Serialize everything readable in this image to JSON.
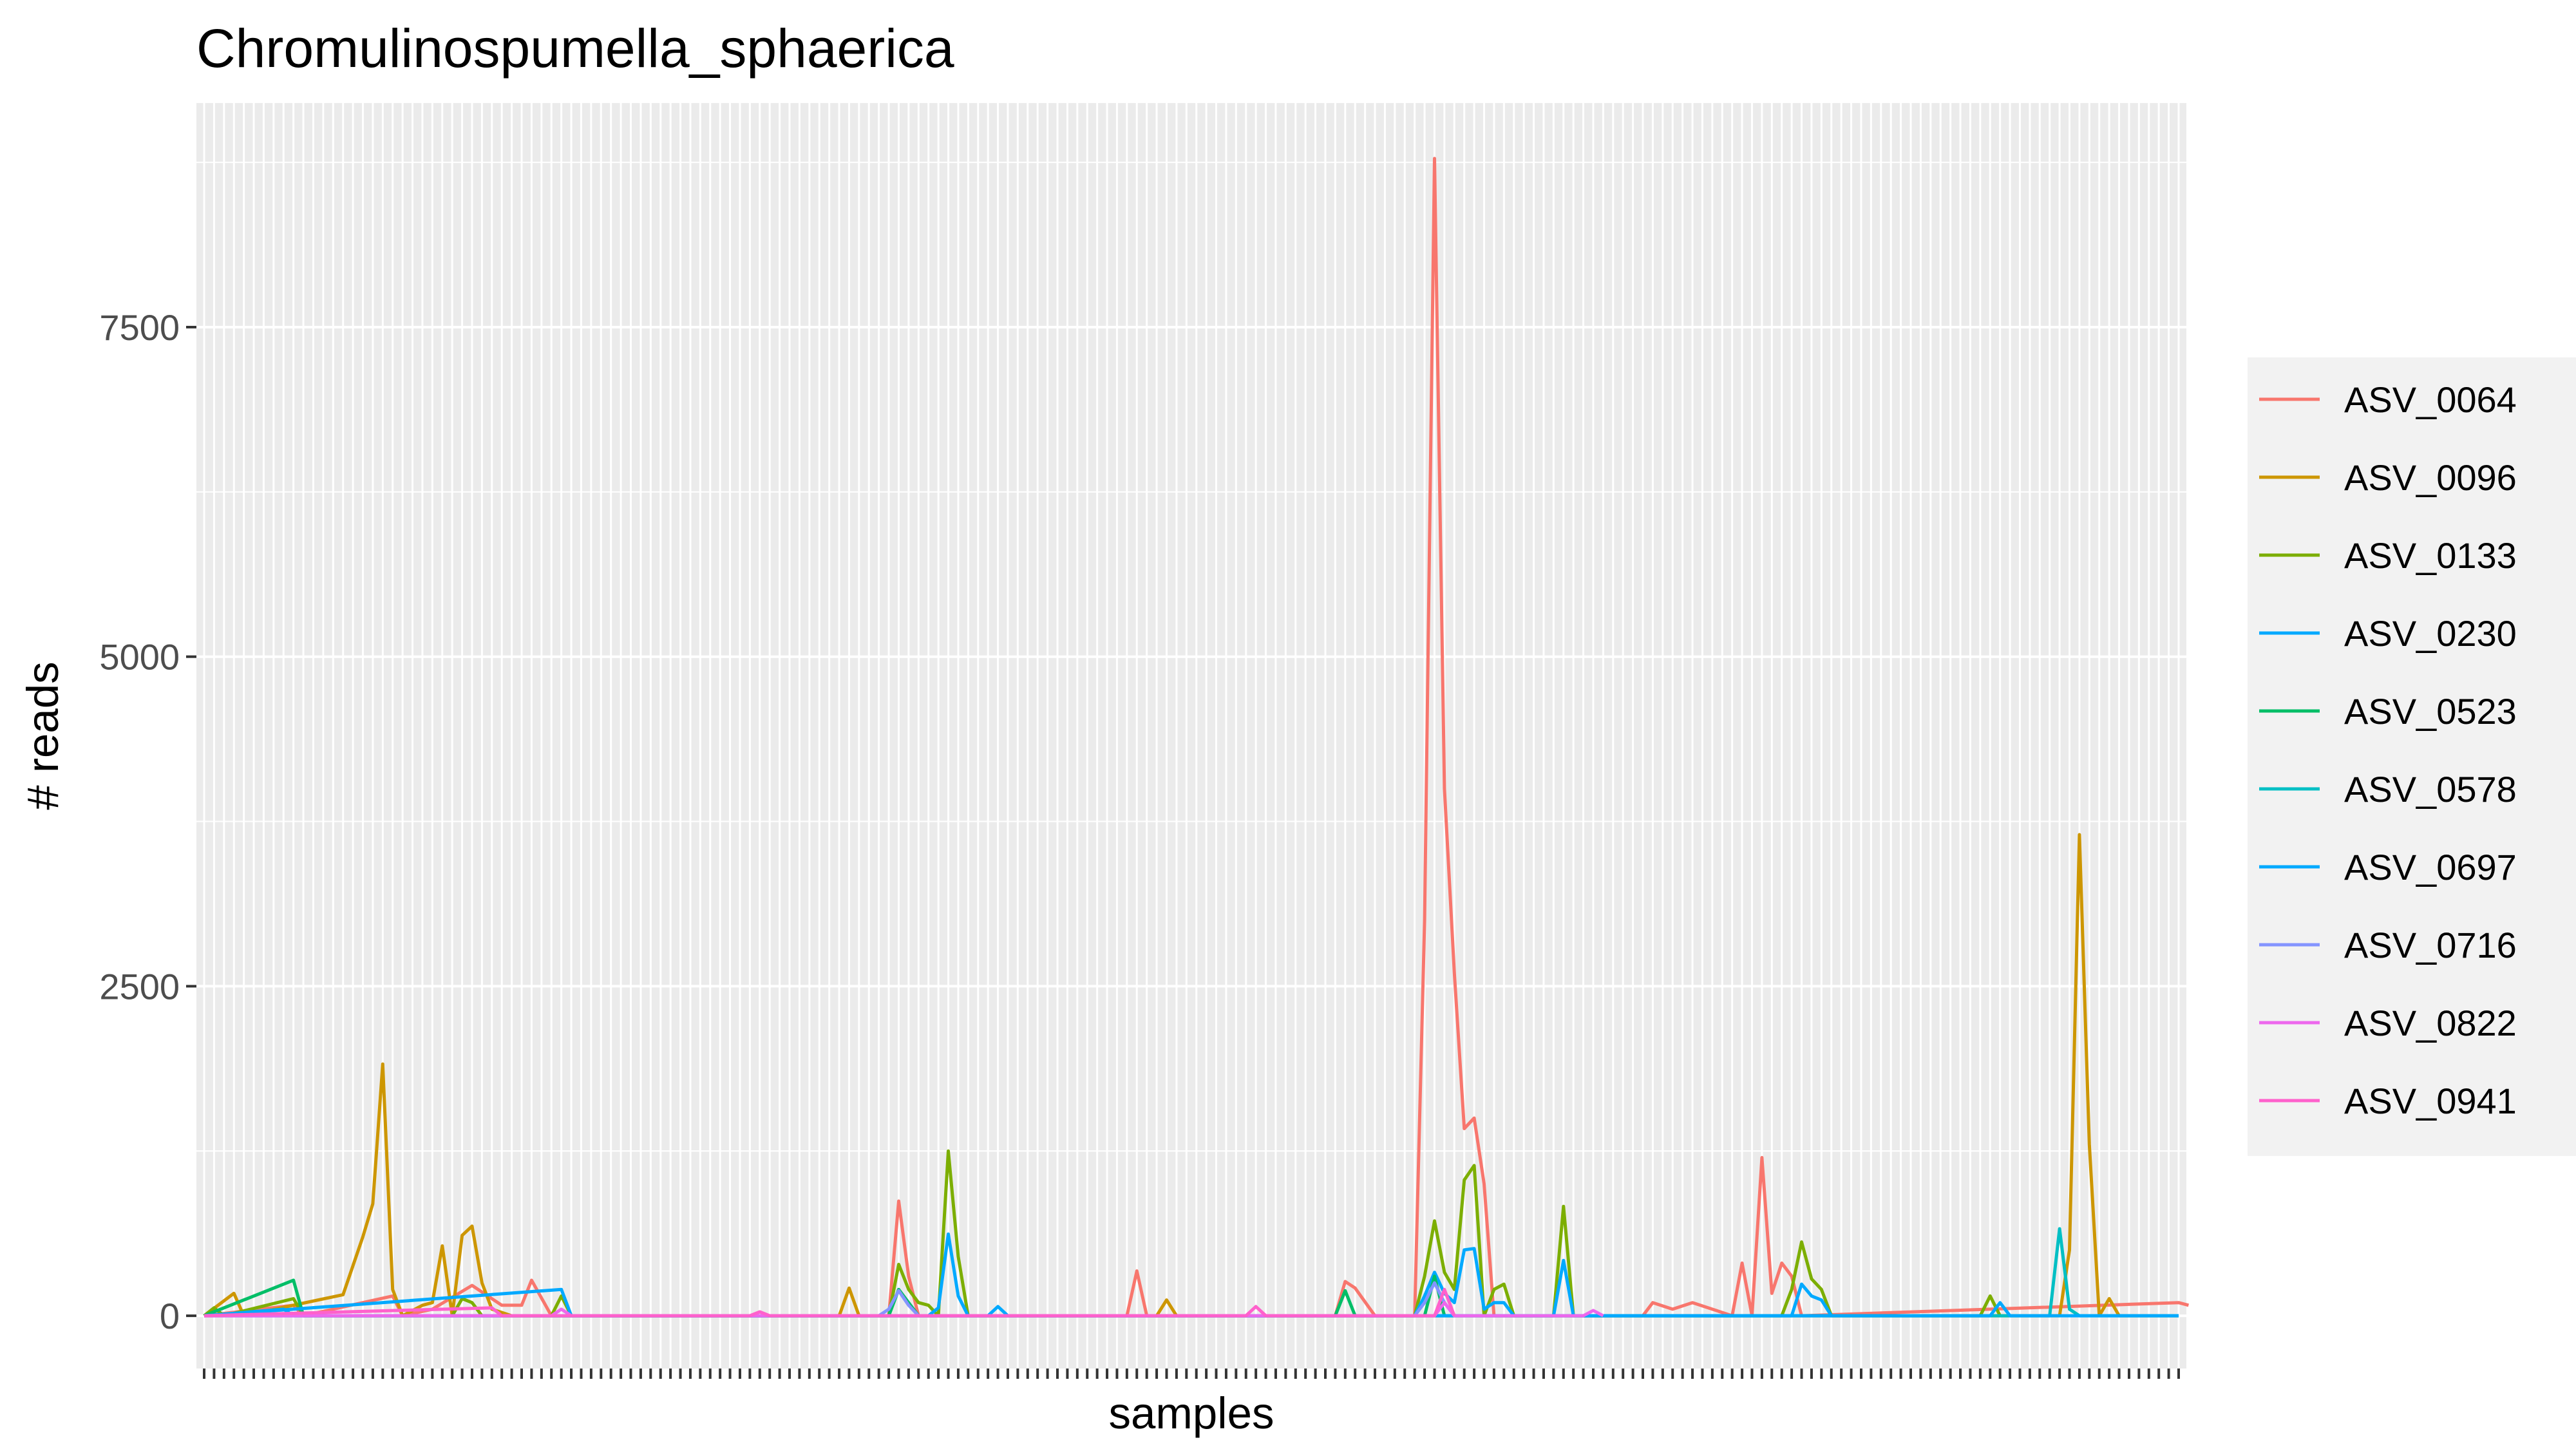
{
  "chart_data": {
    "type": "line",
    "title": "Chromulinospumella_sphaerica",
    "xlabel": "samples",
    "ylabel": "# reads",
    "ylim": [
      -400,
      9200
    ],
    "yticks": [
      0,
      2500,
      5000,
      7500
    ],
    "ytick_labels": [
      "0",
      "2500",
      "5000",
      "7500"
    ],
    "x_count": 200,
    "x_tick_labels_shown": false,
    "grid": true,
    "legend_position": "right",
    "series": [
      {
        "name": "ASV_0064",
        "color": "#F8766D",
        "points": [
          [
            0,
            0
          ],
          [
            9,
            80
          ],
          [
            10,
            0
          ],
          [
            19,
            150
          ],
          [
            20,
            0
          ],
          [
            23,
            50
          ],
          [
            27,
            230
          ],
          [
            30,
            80
          ],
          [
            32,
            80
          ],
          [
            33,
            270
          ],
          [
            35,
            0
          ],
          [
            69,
            0
          ],
          [
            70,
            870
          ],
          [
            71,
            300
          ],
          [
            72,
            0
          ],
          [
            93,
            0
          ],
          [
            94,
            340
          ],
          [
            95,
            0
          ],
          [
            114,
            0
          ],
          [
            115,
            260
          ],
          [
            116,
            210
          ],
          [
            118,
            0
          ],
          [
            121,
            0
          ],
          [
            122,
            0
          ],
          [
            123,
            3000
          ],
          [
            124,
            8780
          ],
          [
            125,
            4000
          ],
          [
            126,
            2600
          ],
          [
            127,
            1420
          ],
          [
            128,
            1500
          ],
          [
            129,
            1000
          ],
          [
            130,
            0
          ],
          [
            145,
            0
          ],
          [
            146,
            100
          ],
          [
            148,
            50
          ],
          [
            150,
            100
          ],
          [
            154,
            0
          ],
          [
            155,
            400
          ],
          [
            156,
            0
          ],
          [
            157,
            1200
          ],
          [
            158,
            170
          ],
          [
            159,
            400
          ],
          [
            160,
            300
          ],
          [
            161,
            0
          ],
          [
            199,
            100
          ],
          [
            200,
            80
          ]
        ]
      },
      {
        "name": "ASV_0096",
        "color": "#CD9600",
        "points": [
          [
            0,
            0
          ],
          [
            3,
            170
          ],
          [
            4,
            0
          ],
          [
            14,
            160
          ],
          [
            16,
            600
          ],
          [
            17,
            850
          ],
          [
            18,
            1910
          ],
          [
            19,
            200
          ],
          [
            20,
            0
          ],
          [
            22,
            80
          ],
          [
            23,
            100
          ],
          [
            24,
            530
          ],
          [
            25,
            0
          ],
          [
            26,
            610
          ],
          [
            27,
            680
          ],
          [
            28,
            250
          ],
          [
            29,
            50
          ],
          [
            31,
            0
          ],
          [
            64,
            0
          ],
          [
            65,
            210
          ],
          [
            66,
            0
          ],
          [
            96,
            0
          ],
          [
            97,
            120
          ],
          [
            98,
            0
          ],
          [
            187,
            0
          ],
          [
            188,
            500
          ],
          [
            189,
            3650
          ],
          [
            190,
            1300
          ],
          [
            191,
            0
          ],
          [
            192,
            130
          ],
          [
            193,
            0
          ],
          [
            199,
            0
          ]
        ]
      },
      {
        "name": "ASV_0133",
        "color": "#7CAE00",
        "points": [
          [
            0,
            0
          ],
          [
            1,
            60
          ],
          [
            2,
            0
          ],
          [
            9,
            130
          ],
          [
            10,
            0
          ],
          [
            25,
            0
          ],
          [
            26,
            130
          ],
          [
            27,
            100
          ],
          [
            28,
            0
          ],
          [
            35,
            0
          ],
          [
            36,
            150
          ],
          [
            37,
            0
          ],
          [
            69,
            0
          ],
          [
            70,
            390
          ],
          [
            71,
            200
          ],
          [
            72,
            100
          ],
          [
            73,
            80
          ],
          [
            74,
            0
          ],
          [
            75,
            1250
          ],
          [
            76,
            450
          ],
          [
            77,
            0
          ],
          [
            122,
            0
          ],
          [
            123,
            300
          ],
          [
            124,
            720
          ],
          [
            125,
            330
          ],
          [
            126,
            200
          ],
          [
            127,
            1030
          ],
          [
            128,
            1140
          ],
          [
            129,
            0
          ],
          [
            130,
            200
          ],
          [
            131,
            240
          ],
          [
            132,
            0
          ],
          [
            136,
            0
          ],
          [
            137,
            830
          ],
          [
            138,
            0
          ],
          [
            158,
            0
          ],
          [
            159,
            0
          ],
          [
            160,
            200
          ],
          [
            161,
            560
          ],
          [
            162,
            280
          ],
          [
            163,
            200
          ],
          [
            164,
            0
          ],
          [
            179,
            0
          ],
          [
            180,
            150
          ],
          [
            181,
            0
          ]
        ]
      },
      {
        "name": "ASV_0230",
        "color": "#00A9FF",
        "points": [
          [
            0,
            0
          ],
          [
            8,
            50
          ],
          [
            9,
            0
          ],
          [
            73,
            0
          ],
          [
            74,
            60
          ],
          [
            75,
            620
          ],
          [
            76,
            150
          ],
          [
            77,
            0
          ],
          [
            122,
            0
          ],
          [
            123,
            150
          ],
          [
            124,
            330
          ],
          [
            125,
            170
          ],
          [
            126,
            100
          ],
          [
            127,
            500
          ],
          [
            128,
            510
          ],
          [
            129,
            50
          ],
          [
            130,
            100
          ],
          [
            131,
            100
          ],
          [
            132,
            0
          ],
          [
            136,
            0
          ],
          [
            137,
            420
          ],
          [
            138,
            0
          ],
          [
            160,
            0
          ],
          [
            161,
            240
          ],
          [
            162,
            150
          ],
          [
            163,
            120
          ],
          [
            164,
            0
          ]
        ]
      },
      {
        "name": "ASV_0523",
        "color": "#00BE67",
        "points": [
          [
            0,
            0
          ],
          [
            9,
            270
          ],
          [
            10,
            0
          ],
          [
            69,
            0
          ],
          [
            70,
            200
          ],
          [
            71,
            100
          ],
          [
            72,
            0
          ],
          [
            114,
            0
          ],
          [
            115,
            190
          ],
          [
            116,
            0
          ],
          [
            123,
            0
          ],
          [
            124,
            300
          ],
          [
            125,
            0
          ]
        ]
      },
      {
        "name": "ASV_0578",
        "color": "#00BFC4",
        "points": [
          [
            0,
            0
          ],
          [
            185,
            0
          ],
          [
            186,
            0
          ],
          [
            187,
            660
          ],
          [
            188,
            50
          ],
          [
            189,
            0
          ],
          [
            199,
            0
          ]
        ]
      },
      {
        "name": "ASV_0697",
        "color": "#00A9FF",
        "points": [
          [
            0,
            0
          ],
          [
            36,
            200
          ],
          [
            37,
            0
          ],
          [
            79,
            0
          ],
          [
            80,
            70
          ],
          [
            81,
            0
          ],
          [
            180,
            0
          ],
          [
            181,
            100
          ],
          [
            182,
            0
          ],
          [
            199,
            0
          ]
        ]
      },
      {
        "name": "ASV_0716",
        "color": "#8494FF",
        "points": [
          [
            0,
            0
          ],
          [
            68,
            0
          ],
          [
            69,
            50
          ],
          [
            70,
            190
          ],
          [
            71,
            80
          ],
          [
            72,
            0
          ],
          [
            122,
            0
          ],
          [
            123,
            100
          ],
          [
            124,
            250
          ],
          [
            125,
            100
          ],
          [
            126,
            0
          ]
        ]
      },
      {
        "name": "ASV_0822",
        "color": "#ED68ED",
        "points": [
          [
            0,
            0
          ],
          [
            35,
            0
          ],
          [
            36,
            50
          ],
          [
            37,
            0
          ],
          [
            124,
            0
          ],
          [
            125,
            100
          ],
          [
            126,
            0
          ],
          [
            139,
            0
          ],
          [
            140,
            40
          ],
          [
            141,
            0
          ]
        ]
      },
      {
        "name": "ASV_0941",
        "color": "#FF61CC",
        "points": [
          [
            0,
            0
          ],
          [
            29,
            60
          ],
          [
            30,
            0
          ],
          [
            55,
            0
          ],
          [
            56,
            30
          ],
          [
            57,
            0
          ],
          [
            105,
            0
          ],
          [
            106,
            70
          ],
          [
            107,
            0
          ],
          [
            124,
            0
          ],
          [
            125,
            200
          ],
          [
            126,
            0
          ]
        ]
      }
    ]
  }
}
